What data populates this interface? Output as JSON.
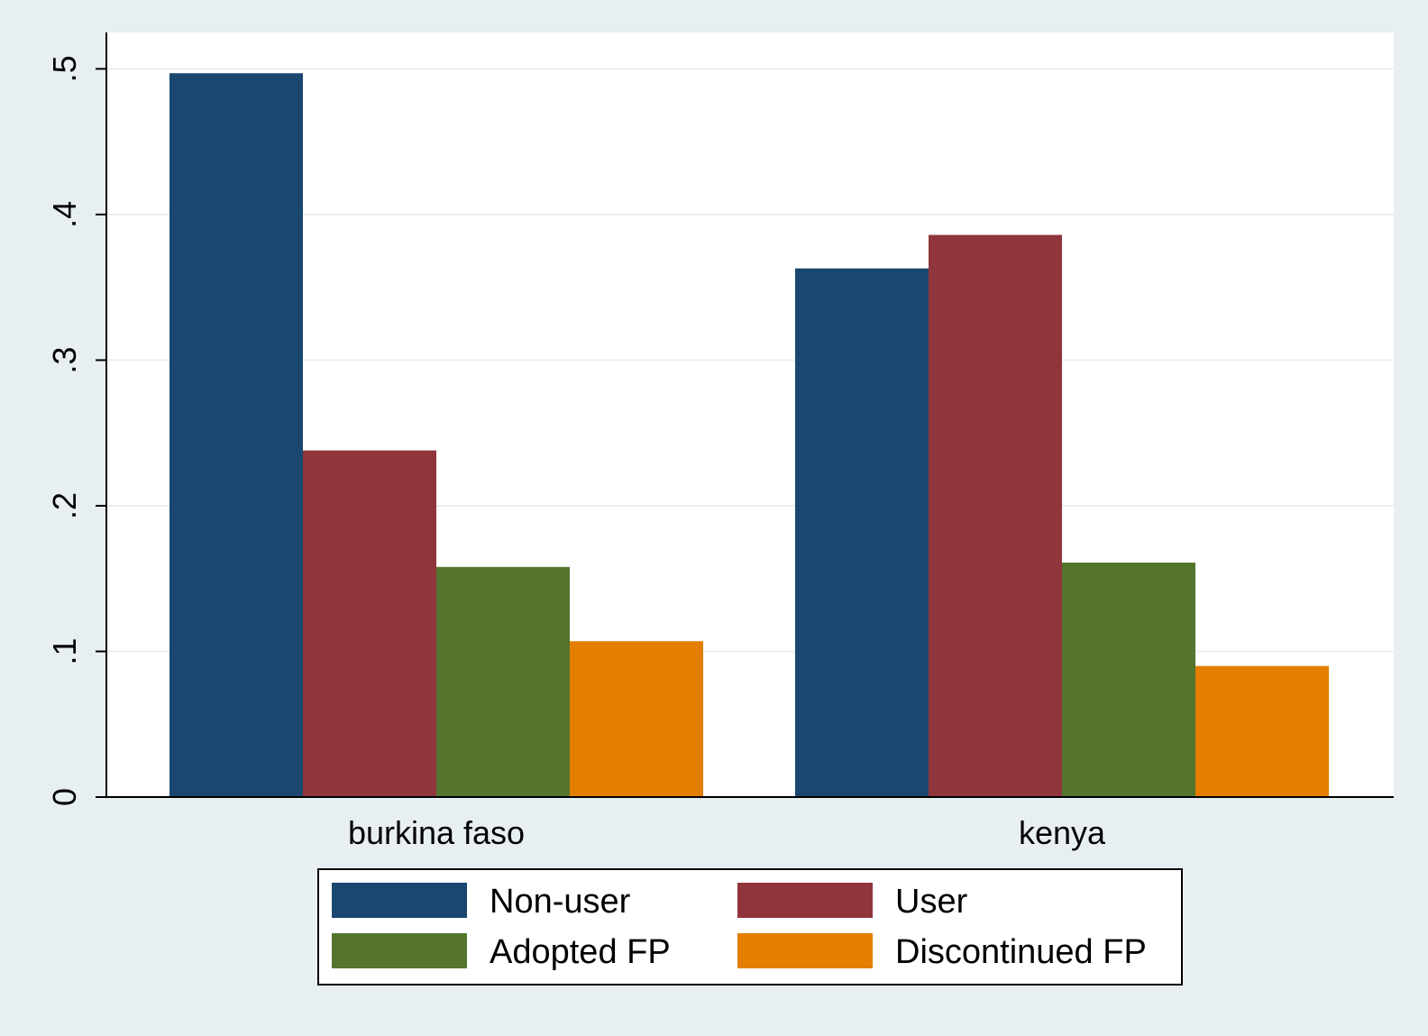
{
  "chart_data": {
    "type": "bar",
    "categories": [
      "burkina faso",
      "kenya"
    ],
    "series": [
      {
        "name": "Non-user",
        "color": "#1a476f",
        "values": [
          0.497,
          0.363
        ]
      },
      {
        "name": "User",
        "color": "#90353b",
        "values": [
          0.238,
          0.386
        ]
      },
      {
        "name": "Adopted FP",
        "color": "#55752f",
        "values": [
          0.158,
          0.161
        ]
      },
      {
        "name": "Discontinued FP",
        "color": "#e37e00",
        "values": [
          0.107,
          0.09
        ]
      }
    ],
    "y_ticks": [
      {
        "value": 0,
        "label": "0"
      },
      {
        "value": 0.1,
        "label": ".1"
      },
      {
        "value": 0.2,
        "label": ".2"
      },
      {
        "value": 0.3,
        "label": ".3"
      },
      {
        "value": 0.4,
        "label": ".4"
      },
      {
        "value": 0.5,
        "label": ".5"
      }
    ],
    "ylim": [
      0,
      0.525
    ],
    "grid": true,
    "legend_position": "bottom",
    "legend_columns": 2,
    "colors": {
      "background": "#e8eff2",
      "plot_background": "#ffffff",
      "gridline": "#e8eff2",
      "axis": "#000000"
    }
  }
}
